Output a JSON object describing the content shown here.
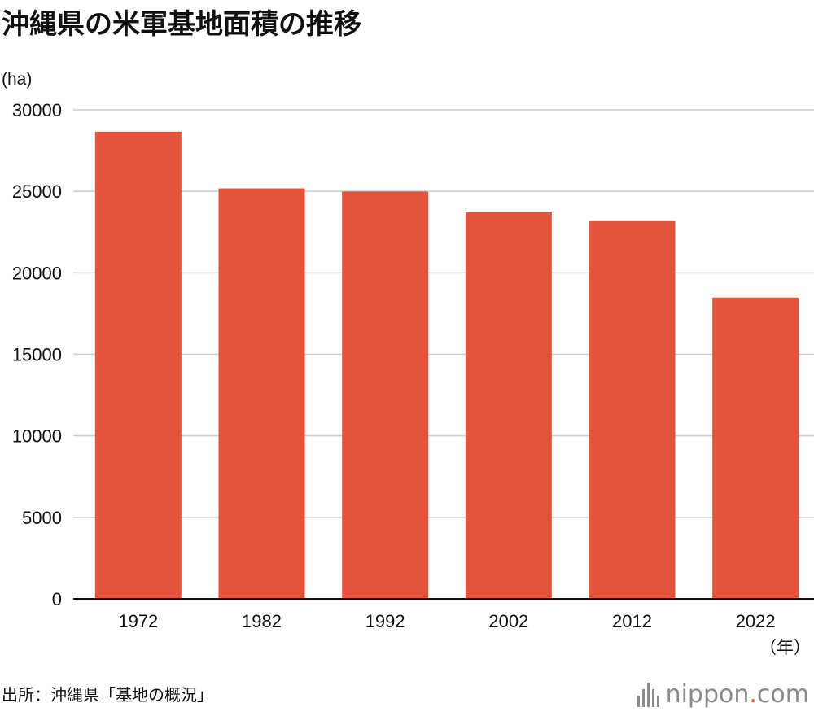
{
  "header": {
    "title": "沖縄県の米軍基地面積の推移"
  },
  "footer": {
    "source": "出所：沖縄県「基地の概況」",
    "logo_main": "nippon",
    "logo_dot": ".",
    "logo_tld": "com"
  },
  "chart_data": {
    "type": "bar",
    "title": "沖縄県の米軍基地面積の推移",
    "ylabel": "(ha)",
    "xlabel": "（年）",
    "categories": [
      "1972",
      "1982",
      "1992",
      "2002",
      "2012",
      "2022"
    ],
    "values": [
      28660,
      25180,
      24990,
      23720,
      23170,
      18480
    ],
    "ylim": [
      0,
      30000
    ],
    "yticks": [
      "0",
      "5000",
      "10000",
      "15000",
      "20000",
      "25000",
      "30000"
    ],
    "grid": true,
    "legend": "none",
    "bar_color": "#e5533a"
  }
}
